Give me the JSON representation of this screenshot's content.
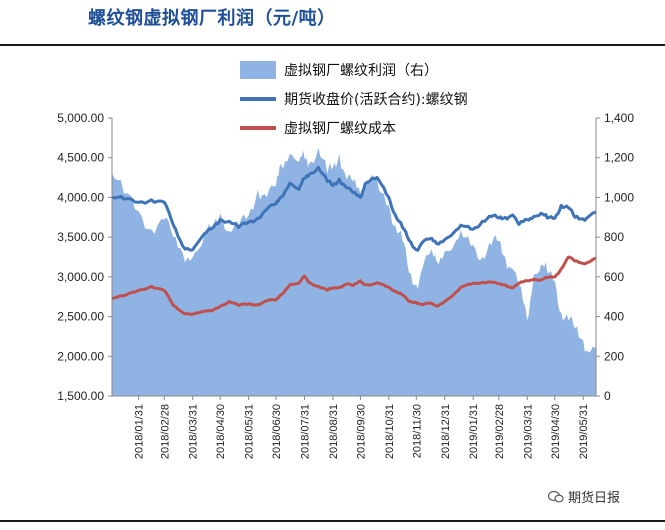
{
  "title": "螺纹钢虚拟钢厂利润（元/吨）",
  "watermark": "期货日报",
  "colors": {
    "profit_fill": "#8fb4e3",
    "price_line": "#3e73b7",
    "cost_line": "#c0504d",
    "title": "#1f4f96"
  },
  "chart_data": {
    "type": "line",
    "title": "",
    "legend_position": "top-center",
    "grid": false,
    "y_left": {
      "ylim": [
        1500,
        5000
      ],
      "ticks": [
        "1,500.00",
        "2,000.00",
        "2,500.00",
        "3,000.00",
        "3,500.00",
        "4,000.00",
        "4,500.00",
        "5,000.00"
      ]
    },
    "y_right": {
      "ylim": [
        0,
        1400
      ],
      "ticks": [
        "0",
        "200",
        "400",
        "600",
        "800",
        "1,000",
        "1,200",
        "1,400"
      ]
    },
    "x_ticks": [
      "2018/01/31",
      "2018/02/28",
      "2018/03/31",
      "2018/04/30",
      "2018/05/31",
      "2018/06/30",
      "2018/07/31",
      "2018/08/31",
      "2018/09/30",
      "2018/10/31",
      "2018/11/30",
      "2018/12/31",
      "2019/01/31",
      "2019/02/28",
      "2019/03/31",
      "2019/04/30",
      "2019/05/31"
    ],
    "series": [
      {
        "name": "虚拟钢厂螺纹利润（右）",
        "type": "area",
        "axis": "right",
        "points": [
          [
            "2018/01/02",
            1120
          ],
          [
            "2018/01/15",
            1020
          ],
          [
            "2018/01/31",
            930
          ],
          [
            "2018/02/14",
            840
          ],
          [
            "2018/02/28",
            890
          ],
          [
            "2018/03/10",
            800
          ],
          [
            "2018/03/20",
            720
          ],
          [
            "2018/03/31",
            700
          ],
          [
            "2018/04/10",
            760
          ],
          [
            "2018/04/20",
            850
          ],
          [
            "2018/04/30",
            920
          ],
          [
            "2018/05/10",
            830
          ],
          [
            "2018/05/20",
            850
          ],
          [
            "2018/05/31",
            910
          ],
          [
            "2018/06/10",
            1040
          ],
          [
            "2018/06/20",
            1000
          ],
          [
            "2018/06/30",
            1060
          ],
          [
            "2018/07/05",
            1170
          ],
          [
            "2018/07/15",
            1220
          ],
          [
            "2018/07/25",
            1180
          ],
          [
            "2018/07/31",
            1200
          ],
          [
            "2018/08/05",
            1170
          ],
          [
            "2018/08/15",
            1250
          ],
          [
            "2018/08/25",
            1120
          ],
          [
            "2018/08/31",
            1150
          ],
          [
            "2018/09/07",
            1220
          ],
          [
            "2018/09/15",
            1090
          ],
          [
            "2018/09/22",
            1080
          ],
          [
            "2018/09/30",
            1020
          ],
          [
            "2018/10/05",
            1080
          ],
          [
            "2018/10/12",
            1110
          ],
          [
            "2018/10/20",
            1040
          ],
          [
            "2018/10/31",
            960
          ],
          [
            "2018/11/07",
            860
          ],
          [
            "2018/11/15",
            780
          ],
          [
            "2018/11/22",
            620
          ],
          [
            "2018/11/30",
            560
          ],
          [
            "2018/12/07",
            650
          ],
          [
            "2018/12/15",
            720
          ],
          [
            "2018/12/22",
            680
          ],
          [
            "2018/12/31",
            730
          ],
          [
            "2019/01/10",
            760
          ],
          [
            "2019/01/20",
            800
          ],
          [
            "2019/01/31",
            760
          ],
          [
            "2019/02/10",
            700
          ],
          [
            "2019/02/20",
            760
          ],
          [
            "2019/02/28",
            780
          ],
          [
            "2019/03/07",
            700
          ],
          [
            "2019/03/15",
            640
          ],
          [
            "2019/03/22",
            560
          ],
          [
            "2019/03/31",
            380
          ],
          [
            "2019/04/07",
            610
          ],
          [
            "2019/04/15",
            660
          ],
          [
            "2019/04/22",
            620
          ],
          [
            "2019/04/30",
            580
          ],
          [
            "2019/05/07",
            420
          ],
          [
            "2019/05/15",
            380
          ],
          [
            "2019/05/22",
            340
          ],
          [
            "2019/05/31",
            280
          ],
          [
            "2019/06/07",
            220
          ],
          [
            "2019/06/14",
            250
          ]
        ]
      },
      {
        "name": "期货收盘价(活跃合约):螺纹钢",
        "type": "line",
        "axis": "left",
        "points": [
          [
            "2018/01/02",
            4000
          ],
          [
            "2018/01/15",
            3980
          ],
          [
            "2018/01/31",
            3940
          ],
          [
            "2018/02/14",
            3970
          ],
          [
            "2018/02/28",
            3940
          ],
          [
            "2018/03/10",
            3650
          ],
          [
            "2018/03/20",
            3390
          ],
          [
            "2018/03/31",
            3340
          ],
          [
            "2018/04/10",
            3500
          ],
          [
            "2018/04/20",
            3600
          ],
          [
            "2018/04/30",
            3720
          ],
          [
            "2018/05/10",
            3700
          ],
          [
            "2018/05/20",
            3620
          ],
          [
            "2018/05/31",
            3690
          ],
          [
            "2018/06/10",
            3740
          ],
          [
            "2018/06/20",
            3850
          ],
          [
            "2018/06/30",
            3920
          ],
          [
            "2018/07/05",
            4000
          ],
          [
            "2018/07/15",
            4180
          ],
          [
            "2018/07/25",
            4100
          ],
          [
            "2018/07/31",
            4240
          ],
          [
            "2018/08/05",
            4290
          ],
          [
            "2018/08/15",
            4380
          ],
          [
            "2018/08/25",
            4200
          ],
          [
            "2018/08/31",
            4150
          ],
          [
            "2018/09/07",
            4230
          ],
          [
            "2018/09/15",
            4120
          ],
          [
            "2018/09/22",
            4060
          ],
          [
            "2018/09/30",
            4000
          ],
          [
            "2018/10/05",
            4170
          ],
          [
            "2018/10/12",
            4230
          ],
          [
            "2018/10/20",
            4220
          ],
          [
            "2018/10/31",
            4000
          ],
          [
            "2018/11/07",
            3780
          ],
          [
            "2018/11/15",
            3620
          ],
          [
            "2018/11/22",
            3460
          ],
          [
            "2018/11/30",
            3340
          ],
          [
            "2018/12/07",
            3440
          ],
          [
            "2018/12/15",
            3480
          ],
          [
            "2018/12/22",
            3420
          ],
          [
            "2018/12/31",
            3470
          ],
          [
            "2019/01/10",
            3560
          ],
          [
            "2019/01/20",
            3640
          ],
          [
            "2019/01/31",
            3600
          ],
          [
            "2019/02/10",
            3700
          ],
          [
            "2019/02/20",
            3760
          ],
          [
            "2019/02/28",
            3740
          ],
          [
            "2019/03/07",
            3750
          ],
          [
            "2019/03/15",
            3780
          ],
          [
            "2019/03/22",
            3660
          ],
          [
            "2019/03/31",
            3720
          ],
          [
            "2019/04/07",
            3760
          ],
          [
            "2019/04/15",
            3800
          ],
          [
            "2019/04/22",
            3740
          ],
          [
            "2019/04/30",
            3740
          ],
          [
            "2019/05/07",
            3900
          ],
          [
            "2019/05/15",
            3870
          ],
          [
            "2019/05/22",
            3750
          ],
          [
            "2019/05/31",
            3730
          ],
          [
            "2019/06/07",
            3770
          ],
          [
            "2019/06/14",
            3820
          ]
        ]
      },
      {
        "name": "虚拟钢厂螺纹成本",
        "type": "line",
        "axis": "left",
        "points": [
          [
            "2018/01/02",
            2730
          ],
          [
            "2018/01/15",
            2760
          ],
          [
            "2018/01/31",
            2830
          ],
          [
            "2018/02/14",
            2880
          ],
          [
            "2018/02/28",
            2830
          ],
          [
            "2018/03/10",
            2640
          ],
          [
            "2018/03/20",
            2550
          ],
          [
            "2018/03/31",
            2530
          ],
          [
            "2018/04/10",
            2560
          ],
          [
            "2018/04/20",
            2570
          ],
          [
            "2018/04/30",
            2630
          ],
          [
            "2018/05/10",
            2690
          ],
          [
            "2018/05/20",
            2640
          ],
          [
            "2018/05/31",
            2660
          ],
          [
            "2018/06/10",
            2650
          ],
          [
            "2018/06/20",
            2700
          ],
          [
            "2018/06/30",
            2710
          ],
          [
            "2018/07/05",
            2770
          ],
          [
            "2018/07/15",
            2900
          ],
          [
            "2018/07/25",
            2920
          ],
          [
            "2018/07/31",
            3010
          ],
          [
            "2018/08/05",
            2930
          ],
          [
            "2018/08/15",
            2880
          ],
          [
            "2018/08/25",
            2830
          ],
          [
            "2018/08/31",
            2860
          ],
          [
            "2018/09/07",
            2870
          ],
          [
            "2018/09/15",
            2910
          ],
          [
            "2018/09/22",
            2890
          ],
          [
            "2018/09/30",
            2950
          ],
          [
            "2018/10/05",
            2900
          ],
          [
            "2018/10/12",
            2900
          ],
          [
            "2018/10/20",
            2920
          ],
          [
            "2018/10/31",
            2870
          ],
          [
            "2018/11/07",
            2820
          ],
          [
            "2018/11/15",
            2770
          ],
          [
            "2018/11/22",
            2690
          ],
          [
            "2018/11/30",
            2680
          ],
          [
            "2018/12/07",
            2650
          ],
          [
            "2018/12/15",
            2670
          ],
          [
            "2018/12/22",
            2630
          ],
          [
            "2018/12/31",
            2690
          ],
          [
            "2019/01/10",
            2780
          ],
          [
            "2019/01/20",
            2880
          ],
          [
            "2019/01/31",
            2920
          ],
          [
            "2019/02/10",
            2930
          ],
          [
            "2019/02/20",
            2930
          ],
          [
            "2019/02/28",
            2910
          ],
          [
            "2019/03/07",
            2900
          ],
          [
            "2019/03/15",
            2860
          ],
          [
            "2019/03/22",
            2920
          ],
          [
            "2019/03/31",
            2950
          ],
          [
            "2019/04/07",
            2970
          ],
          [
            "2019/04/15",
            2960
          ],
          [
            "2019/04/22",
            2990
          ],
          [
            "2019/04/30",
            3000
          ],
          [
            "2019/05/07",
            3100
          ],
          [
            "2019/05/15",
            3250
          ],
          [
            "2019/05/22",
            3200
          ],
          [
            "2019/05/31",
            3170
          ],
          [
            "2019/06/07",
            3190
          ],
          [
            "2019/06/14",
            3240
          ]
        ]
      }
    ]
  }
}
